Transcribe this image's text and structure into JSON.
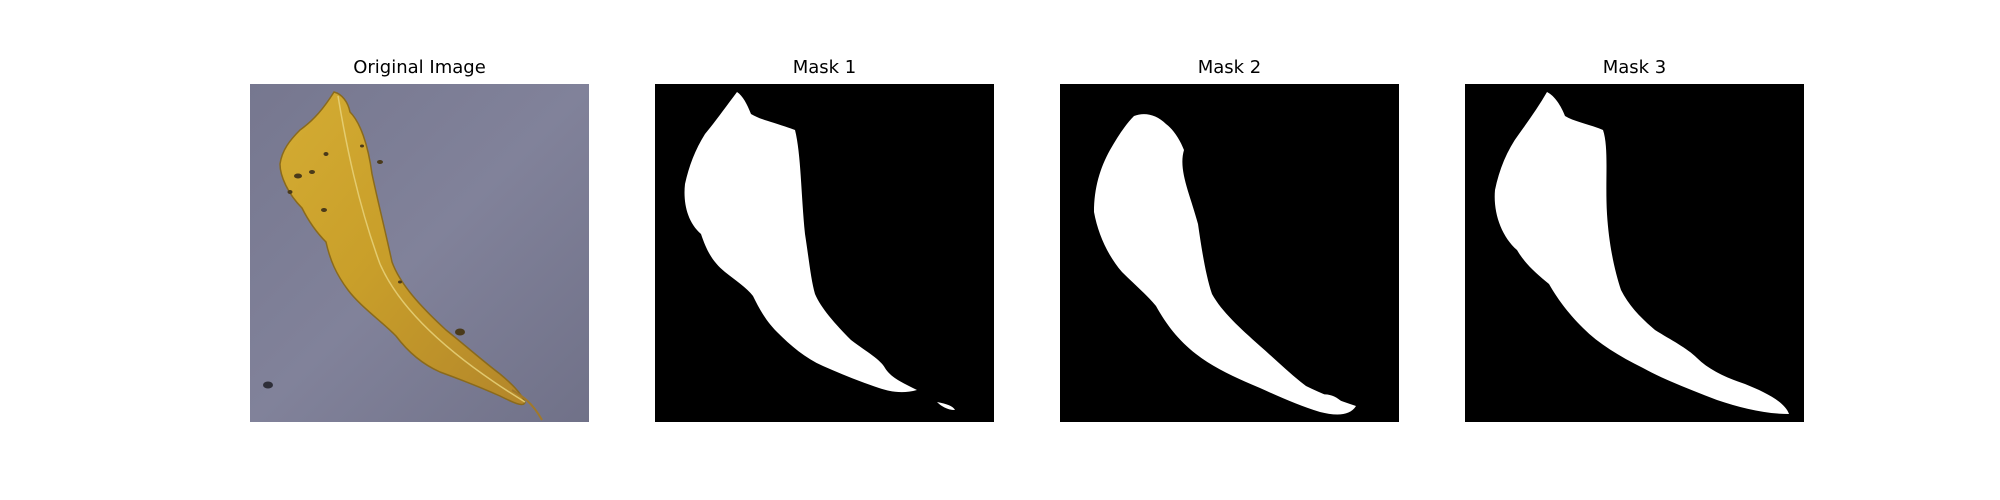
{
  "figure": {
    "panels": [
      {
        "title": "Original Image",
        "kind": "photo",
        "content": "leaf-photo"
      },
      {
        "title": "Mask 1",
        "kind": "mask",
        "content": "leaf-mask"
      },
      {
        "title": "Mask 2",
        "kind": "mask",
        "content": "leaf-mask"
      },
      {
        "title": "Mask 3",
        "kind": "mask",
        "content": "leaf-mask"
      }
    ]
  },
  "colors": {
    "photo_background": "#7e7f96",
    "leaf_yellow": "#c9a22a",
    "leaf_edge": "#8a6a1c",
    "leaf_vein": "#e8d27a",
    "leaf_spot": "#4a3a1a",
    "mask_background": "#000000",
    "mask_foreground": "#ffffff"
  }
}
